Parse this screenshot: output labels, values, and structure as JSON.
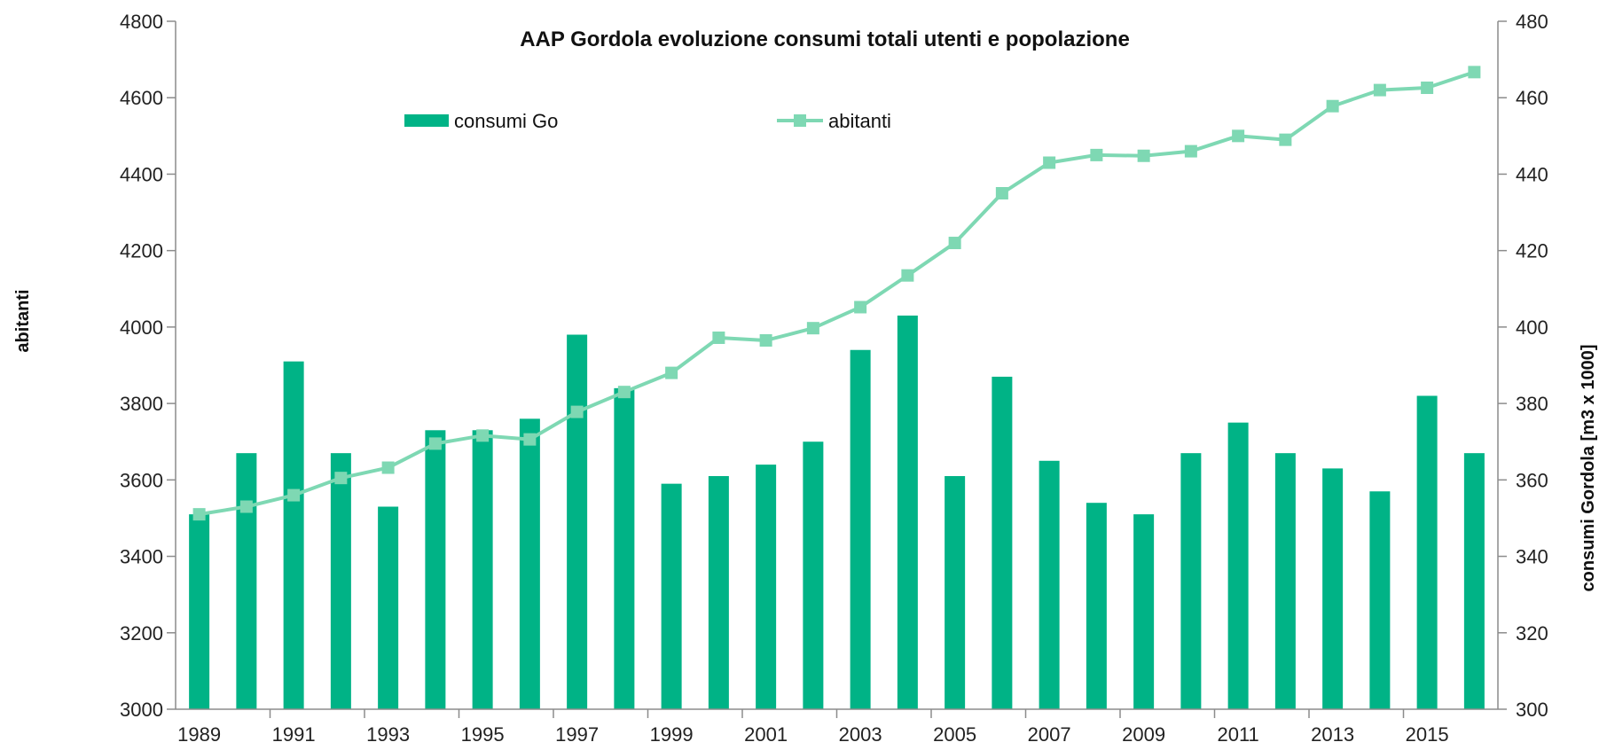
{
  "chart_data": {
    "type": "bar",
    "title": "AAP Gordola evoluzione consumi totali utenti e popolazione",
    "y_left_label": "abitanti",
    "y_right_label": "consumi Gordola [m3 x 1000]",
    "y_left_range": [
      3000,
      4800
    ],
    "y_left_ticks": [
      "3000",
      "3200",
      "3400",
      "3600",
      "3800",
      "4000",
      "4200",
      "4400",
      "4600",
      "4800"
    ],
    "y_right_range": [
      300,
      480
    ],
    "y_right_ticks": [
      "300",
      "320",
      "340",
      "360",
      "380",
      "400",
      "420",
      "440",
      "460",
      "480"
    ],
    "x_tick_labels": [
      "1989",
      "1991",
      "1993",
      "1995",
      "1997",
      "1999",
      "2001",
      "2003",
      "2005",
      "2007",
      "2009",
      "2011",
      "2013",
      "2015"
    ],
    "years": [
      1989,
      1990,
      1991,
      1992,
      1993,
      1994,
      1995,
      1996,
      1997,
      1998,
      1999,
      2000,
      2001,
      2002,
      2003,
      2004,
      2005,
      2006,
      2007,
      2008,
      2009,
      2010,
      2011,
      2012,
      2013,
      2014,
      2015,
      2016
    ],
    "grid": false,
    "legend_position": "top",
    "series": [
      {
        "name": "consumi Go",
        "type": "bar",
        "axis": "right",
        "color": "#00b386",
        "values": [
          351,
          367,
          391,
          367,
          353,
          373,
          373,
          376,
          398,
          384,
          359,
          361,
          364,
          370,
          394,
          403,
          361,
          387,
          365,
          354,
          351,
          367,
          375,
          367,
          363,
          357,
          382,
          367
        ]
      },
      {
        "name": "abitanti",
        "type": "line",
        "axis": "left",
        "color": "#7ed8b3",
        "values": [
          3510,
          3530,
          3560,
          3605,
          3632,
          3695,
          3716,
          3706,
          3778,
          3830,
          3880,
          3972,
          3965,
          3997,
          4052,
          4135,
          4220,
          4350,
          4430,
          4450,
          4448,
          4460,
          4500,
          4490,
          4578,
          4620,
          4626,
          4667
        ]
      }
    ]
  }
}
